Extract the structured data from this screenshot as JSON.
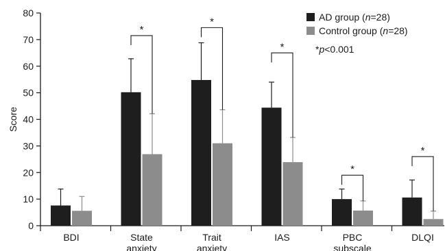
{
  "chart_data": {
    "type": "bar",
    "ylabel": "Score",
    "ylim": [
      0,
      80
    ],
    "yticks": [
      0,
      10,
      20,
      30,
      40,
      50,
      60,
      70,
      80
    ],
    "categories": [
      [
        "BDI"
      ],
      [
        "State",
        "anxiety"
      ],
      [
        "Trait",
        "anxiety"
      ],
      [
        "IAS"
      ],
      [
        "PBC",
        "subscale"
      ],
      [
        "DLQI"
      ]
    ],
    "series": [
      {
        "legend_prefix": "AD group (",
        "legend_n": "n",
        "legend_suffix": "=28)",
        "color": "#1e1e1e",
        "values": [
          7.6,
          50.2,
          54.8,
          44.4,
          10.0,
          10.6
        ],
        "errors": [
          6.2,
          12.6,
          14.0,
          9.6,
          3.8,
          6.6
        ]
      },
      {
        "legend_prefix": "Control group (",
        "legend_n": "n",
        "legend_suffix": "=28)",
        "color": "#8c8c8c",
        "values": [
          5.6,
          26.9,
          31.0,
          23.9,
          5.7,
          2.5
        ],
        "errors": [
          5.4,
          15.2,
          12.6,
          9.3,
          3.6,
          3.0
        ]
      }
    ],
    "significance": {
      "symbol": "*",
      "note_symbol": "*",
      "note_p": "p",
      "note_rest": "<0.001",
      "categories": [
        1,
        2,
        3,
        4,
        5
      ],
      "bracket_top": [
        71.5,
        74.5,
        65.0,
        19.0,
        26.0
      ]
    },
    "legend_position": "top-right"
  }
}
